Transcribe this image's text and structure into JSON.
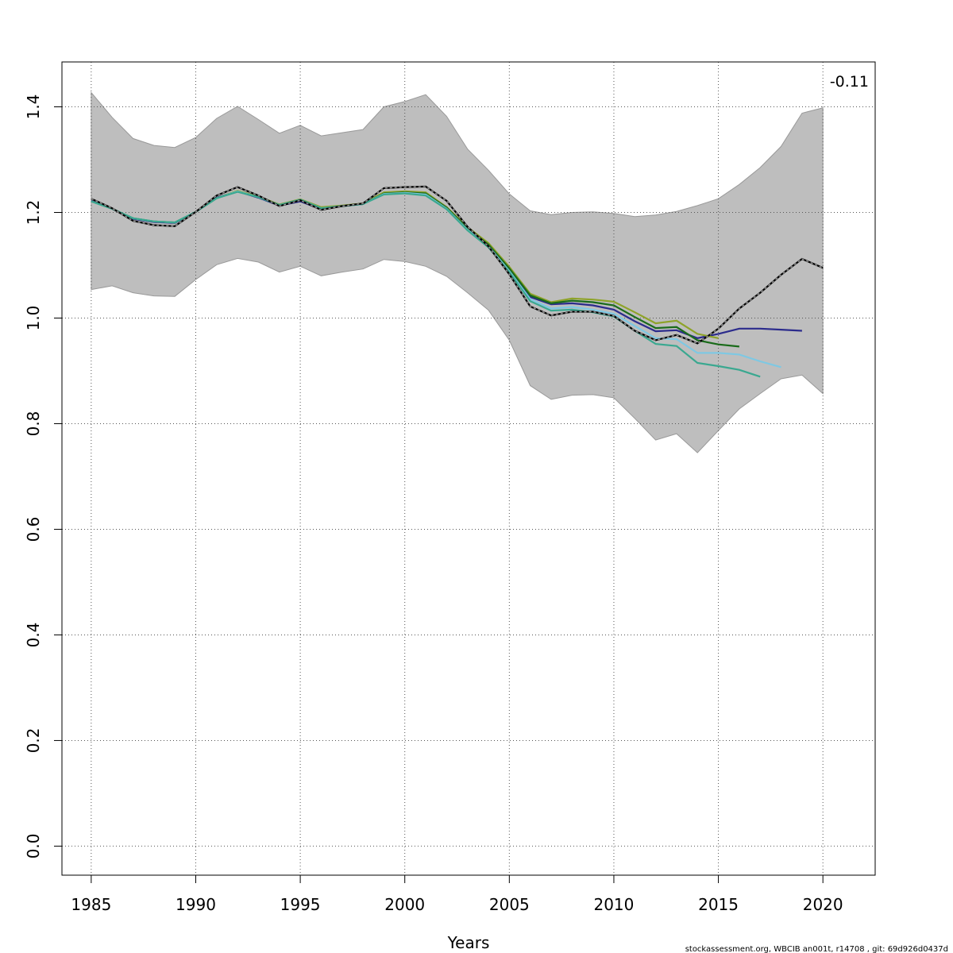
{
  "chart_data": {
    "type": "line",
    "title": "",
    "xlabel": "Years",
    "ylabel": "",
    "xlim": [
      1983.6,
      2022.5
    ],
    "ylim": [
      -0.055,
      1.485
    ],
    "x_ticks": [
      "1985",
      "1990",
      "1995",
      "2000",
      "2005",
      "2010",
      "2015",
      "2020"
    ],
    "y_ticks": [
      "0.0",
      "0.2",
      "0.4",
      "0.6",
      "0.8",
      "1.0",
      "1.2",
      "1.4"
    ],
    "grid": true,
    "annotation": "-0.11",
    "footer": "stockassessment.org, WBCIB  an001t, r14708 , git: 69d926d0437d",
    "band": {
      "x": [
        1985,
        1986,
        1987,
        1988,
        1989,
        1990,
        1991,
        1992,
        1993,
        1994,
        1995,
        1996,
        1997,
        1998,
        1999,
        2000,
        2001,
        2002,
        2003,
        2004,
        2005,
        2006,
        2007,
        2008,
        2009,
        2010,
        2011,
        2012,
        2013,
        2014,
        2015,
        2016,
        2017,
        2018,
        2019,
        2020
      ],
      "upper": [
        1.427,
        1.38,
        1.34,
        1.327,
        1.323,
        1.342,
        1.378,
        1.401,
        1.376,
        1.35,
        1.365,
        1.345,
        1.351,
        1.357,
        1.4,
        1.41,
        1.423,
        1.382,
        1.32,
        1.28,
        1.235,
        1.203,
        1.196,
        1.2,
        1.201,
        1.198,
        1.192,
        1.195,
        1.202,
        1.213,
        1.226,
        1.253,
        1.285,
        1.325,
        1.388,
        1.398
      ],
      "lower": [
        1.054,
        1.061,
        1.048,
        1.042,
        1.041,
        1.073,
        1.101,
        1.113,
        1.106,
        1.087,
        1.098,
        1.08,
        1.087,
        1.093,
        1.111,
        1.107,
        1.098,
        1.079,
        1.048,
        1.015,
        0.958,
        0.872,
        0.846,
        0.854,
        0.855,
        0.849,
        0.81,
        0.769,
        0.781,
        0.745,
        0.787,
        0.828,
        0.857,
        0.885,
        0.892,
        0.857
      ]
    },
    "series": [
      {
        "color": "#000000",
        "dashed": true,
        "x": [
          1985,
          1986,
          1987,
          1988,
          1989,
          1990,
          1991,
          1992,
          1993,
          1994,
          1995,
          1996,
          1997,
          1998,
          1999,
          2000,
          2001,
          2002,
          2003,
          2004,
          2005,
          2006,
          2007,
          2008,
          2009,
          2010,
          2011,
          2012,
          2013,
          2014,
          2015,
          2016,
          2017,
          2018,
          2019,
          2020
        ],
        "values": [
          1.226,
          1.208,
          1.184,
          1.176,
          1.174,
          1.201,
          1.232,
          1.248,
          1.232,
          1.212,
          1.223,
          1.205,
          1.212,
          1.217,
          1.246,
          1.248,
          1.249,
          1.222,
          1.173,
          1.136,
          1.083,
          1.022,
          1.005,
          1.012,
          1.012,
          1.004,
          0.976,
          0.958,
          0.968,
          0.952,
          0.98,
          1.018,
          1.048,
          1.082,
          1.112,
          1.095
        ]
      },
      {
        "color": "#2b2b8c",
        "dashed": false,
        "x": [
          1985,
          1986,
          1987,
          1988,
          1989,
          1990,
          1991,
          1992,
          1993,
          1994,
          1995,
          1996,
          1997,
          1998,
          1999,
          2000,
          2001,
          2002,
          2003,
          2004,
          2005,
          2006,
          2007,
          2008,
          2009,
          2010,
          2011,
          2012,
          2013,
          2014,
          2015,
          2016,
          2017,
          2018,
          2019
        ],
        "values": [
          1.222,
          1.207,
          1.188,
          1.182,
          1.18,
          1.201,
          1.228,
          1.24,
          1.228,
          1.213,
          1.221,
          1.206,
          1.212,
          1.216,
          1.236,
          1.238,
          1.236,
          1.21,
          1.17,
          1.137,
          1.091,
          1.04,
          1.026,
          1.028,
          1.024,
          1.016,
          0.994,
          0.975,
          0.977,
          0.962,
          0.97,
          0.98,
          0.98,
          0.978,
          0.976
        ]
      },
      {
        "color": "#8ea329",
        "dashed": false,
        "x": [
          1985,
          1986,
          1987,
          1988,
          1989,
          1990,
          1991,
          1992,
          1993,
          1994,
          1995,
          1996,
          1997,
          1998,
          1999,
          2000,
          2001,
          2002,
          2003,
          2004,
          2005,
          2006,
          2007,
          2008,
          2009,
          2010,
          2011,
          2012,
          2013,
          2014,
          2015
        ],
        "values": [
          1.221,
          1.207,
          1.189,
          1.183,
          1.181,
          1.201,
          1.227,
          1.241,
          1.23,
          1.215,
          1.225,
          1.21,
          1.213,
          1.217,
          1.238,
          1.24,
          1.238,
          1.21,
          1.172,
          1.142,
          1.097,
          1.046,
          1.03,
          1.037,
          1.035,
          1.031,
          1.011,
          0.99,
          0.995,
          0.97,
          0.962
        ]
      },
      {
        "color": "#1a6b1a",
        "dashed": false,
        "x": [
          1985,
          1986,
          1987,
          1988,
          1989,
          1990,
          1991,
          1992,
          1993,
          1994,
          1995,
          1996,
          1997,
          1998,
          1999,
          2000,
          2001,
          2002,
          2003,
          2004,
          2005,
          2006,
          2007,
          2008,
          2009,
          2010,
          2011,
          2012,
          2013,
          2014,
          2015,
          2016
        ],
        "values": [
          1.221,
          1.207,
          1.189,
          1.183,
          1.181,
          1.201,
          1.227,
          1.24,
          1.229,
          1.214,
          1.224,
          1.208,
          1.212,
          1.216,
          1.236,
          1.238,
          1.236,
          1.209,
          1.17,
          1.139,
          1.094,
          1.043,
          1.028,
          1.033,
          1.03,
          1.024,
          1.002,
          0.981,
          0.983,
          0.958,
          0.95,
          0.946
        ]
      },
      {
        "color": "#7ec8e3",
        "dashed": false,
        "x": [
          1985,
          1986,
          1987,
          1988,
          1989,
          1990,
          1991,
          1992,
          1993,
          1994,
          1995,
          1996,
          1997,
          1998,
          1999,
          2000,
          2001,
          2002,
          2003,
          2004,
          2005,
          2006,
          2007,
          2008,
          2009,
          2010,
          2011,
          2012,
          2013,
          2014,
          2015,
          2016,
          2017,
          2018
        ],
        "values": [
          1.221,
          1.207,
          1.189,
          1.183,
          1.181,
          1.201,
          1.227,
          1.24,
          1.229,
          1.214,
          1.224,
          1.208,
          1.212,
          1.216,
          1.235,
          1.237,
          1.234,
          1.207,
          1.167,
          1.136,
          1.089,
          1.036,
          1.018,
          1.021,
          1.016,
          1.008,
          0.985,
          0.962,
          0.96,
          0.934,
          0.934,
          0.931,
          0.918,
          0.907
        ]
      },
      {
        "color": "#3aa890",
        "dashed": false,
        "x": [
          1985,
          1986,
          1987,
          1988,
          1989,
          1990,
          1991,
          1992,
          1993,
          1994,
          1995,
          1996,
          1997,
          1998,
          1999,
          2000,
          2001,
          2002,
          2003,
          2004,
          2005,
          2006,
          2007,
          2008,
          2009,
          2010,
          2011,
          2012,
          2013,
          2014,
          2015,
          2016,
          2017
        ],
        "values": [
          1.221,
          1.207,
          1.189,
          1.183,
          1.181,
          1.201,
          1.227,
          1.239,
          1.229,
          1.214,
          1.224,
          1.208,
          1.212,
          1.216,
          1.234,
          1.236,
          1.232,
          1.206,
          1.166,
          1.134,
          1.087,
          1.032,
          1.014,
          1.016,
          1.011,
          1.003,
          0.976,
          0.951,
          0.947,
          0.915,
          0.909,
          0.902,
          0.889
        ]
      }
    ]
  }
}
